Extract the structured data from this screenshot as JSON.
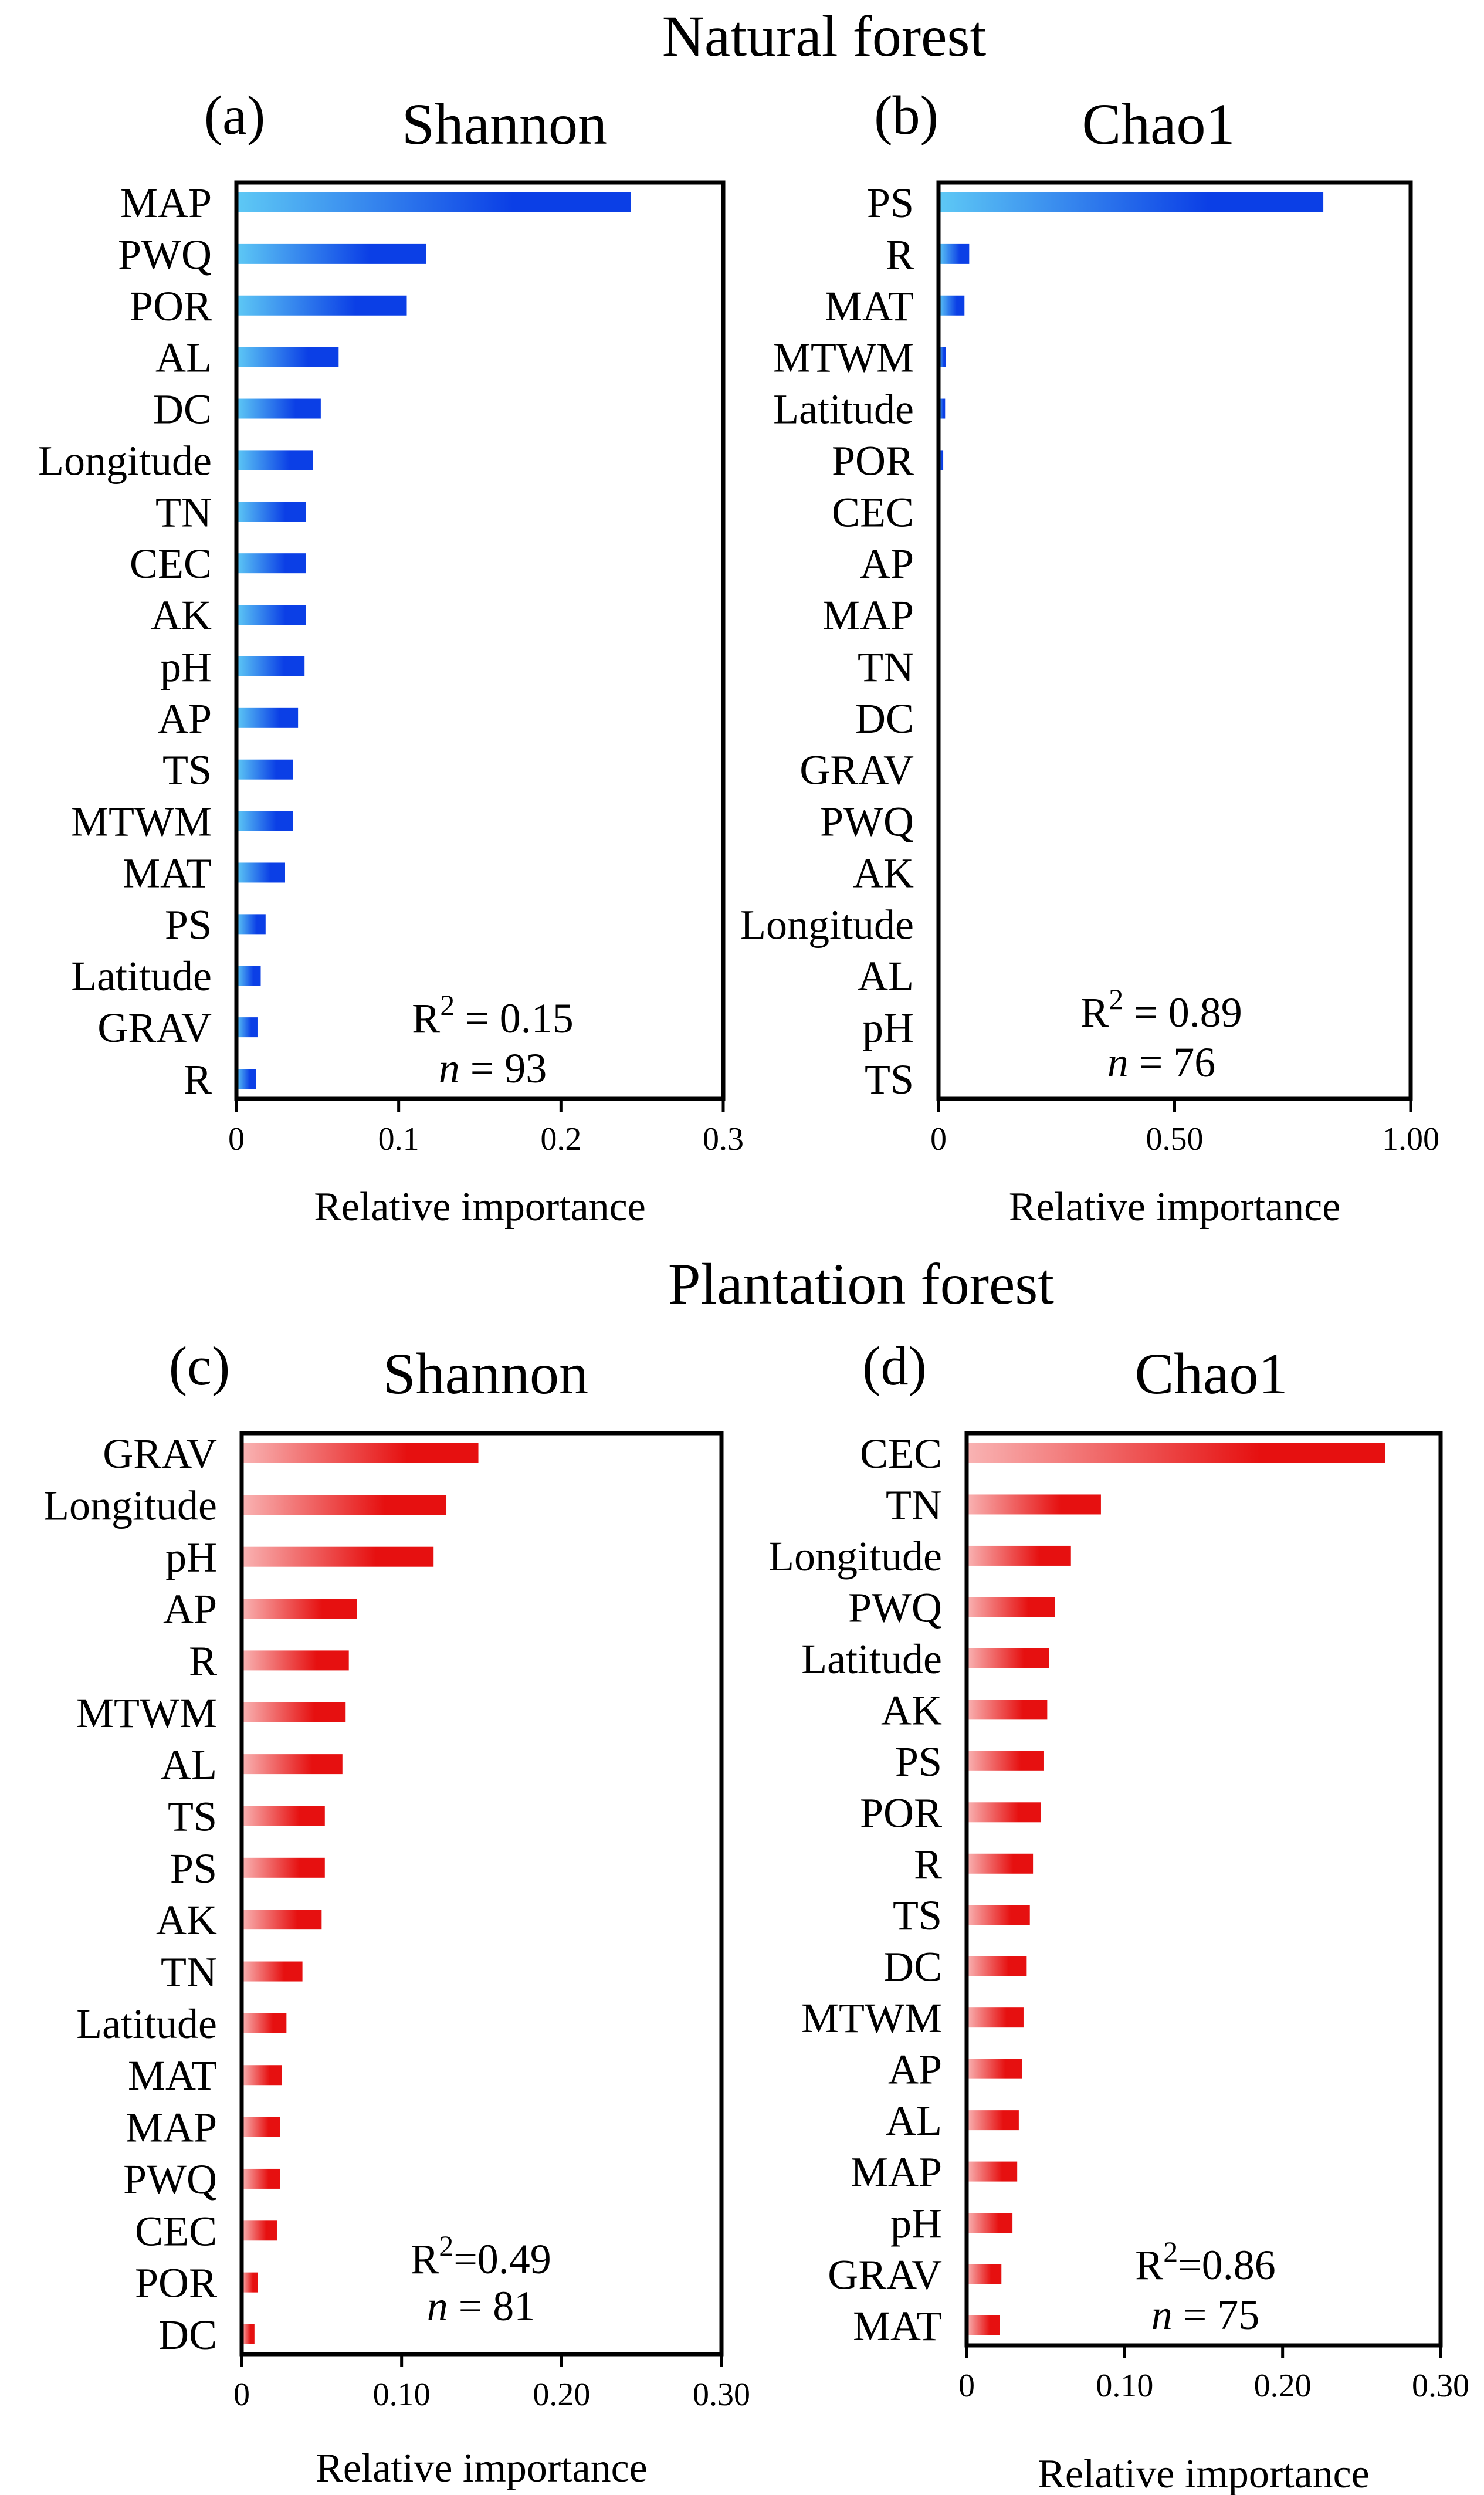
{
  "figure": {
    "section_titles": [
      "Natural forest",
      "Plantation forest"
    ]
  },
  "colors": {
    "natural_bar_dark": "#0b3fe6",
    "natural_bar_light": "#5ec9f5",
    "plantation_bar_dark": "#e61010",
    "plantation_bar_light": "#f9b4b4",
    "axis": "#000000"
  },
  "chart_data": [
    {
      "type": "bar",
      "orientation": "horizontal",
      "letter": "(a)",
      "title": "Shannon",
      "section": "Natural forest",
      "categories": [
        "MAP",
        "PWQ",
        "POR",
        "AL",
        "DC",
        "Longitude",
        "TN",
        "CEC",
        "AK",
        "pH",
        "AP",
        "TS",
        "MTWM",
        "MAT",
        "PS",
        "Latitude",
        "GRAV",
        "R"
      ],
      "values": [
        0.243,
        0.117,
        0.105,
        0.063,
        0.052,
        0.047,
        0.043,
        0.043,
        0.043,
        0.042,
        0.038,
        0.035,
        0.035,
        0.03,
        0.018,
        0.015,
        0.013,
        0.012
      ],
      "xlim": [
        0,
        0.3
      ],
      "ticks": [
        0,
        0.1,
        0.2,
        0.3
      ],
      "tick_labels": [
        "0",
        "0.1",
        "0.2",
        "0.3"
      ],
      "xlabel": "Relative importance",
      "r2_label": "R",
      "r2_sup": "2",
      "r2_rest": " = 0.15",
      "n_label": "n",
      "n_rest": " = 93"
    },
    {
      "type": "bar",
      "orientation": "horizontal",
      "letter": "(b)",
      "title": "Chao1",
      "section": "Natural forest",
      "categories": [
        "PS",
        "R",
        "MAT",
        "MTWM",
        "Latitude",
        "POR",
        "CEC",
        "AP",
        "MAP",
        "TN",
        "DC",
        "GRAV",
        "PWQ",
        "AK",
        "Longitude",
        "AL",
        "pH",
        "TS"
      ],
      "values": [
        0.815,
        0.065,
        0.055,
        0.016,
        0.014,
        0.01,
        0,
        0,
        0,
        0,
        0,
        0,
        0,
        0,
        0,
        0,
        0,
        0
      ],
      "xlim": [
        0,
        1.0
      ],
      "ticks": [
        0,
        0.5,
        1.0
      ],
      "tick_labels": [
        "0",
        "0.50",
        "1.00"
      ],
      "xlabel": "Relative importance",
      "r2_label": "R",
      "r2_sup": "2",
      "r2_rest": " = 0.89",
      "n_label": "n",
      "n_rest": " = 76"
    },
    {
      "type": "bar",
      "orientation": "horizontal",
      "letter": "(c)",
      "title": "Shannon",
      "section": "Plantation forest",
      "categories": [
        "GRAV",
        "Longitude",
        "pH",
        "AP",
        "R",
        "MTWM",
        "AL",
        "TS",
        "PS",
        "AK",
        "TN",
        "Latitude",
        "MAT",
        "MAP",
        "PWQ",
        "CEC",
        "POR",
        "DC"
      ],
      "values": [
        0.148,
        0.128,
        0.12,
        0.072,
        0.067,
        0.065,
        0.063,
        0.052,
        0.052,
        0.05,
        0.038,
        0.028,
        0.025,
        0.024,
        0.024,
        0.022,
        0.01,
        0.008
      ],
      "xlim": [
        0,
        0.3
      ],
      "ticks": [
        0,
        0.1,
        0.2,
        0.3
      ],
      "tick_labels": [
        "0",
        "0.10",
        "0.20",
        "0.30"
      ],
      "xlabel": "Relative importance",
      "r2_label": "R",
      "r2_sup": "2",
      "r2_rest": "=0.49",
      "n_label": "n",
      "n_rest": " = 81"
    },
    {
      "type": "bar",
      "orientation": "horizontal",
      "letter": "(d)",
      "title": "Chao1",
      "section": "Plantation forest",
      "categories": [
        "CEC",
        "TN",
        "Longitude",
        "PWQ",
        "Latitude",
        "AK",
        "PS",
        "POR",
        "R",
        "TS",
        "DC",
        "MTWM",
        "AP",
        "AL",
        "MAP",
        "pH",
        "GRAV",
        "MAT"
      ],
      "values": [
        0.265,
        0.085,
        0.066,
        0.056,
        0.052,
        0.051,
        0.049,
        0.047,
        0.042,
        0.04,
        0.038,
        0.036,
        0.035,
        0.033,
        0.032,
        0.029,
        0.022,
        0.021
      ],
      "xlim": [
        0,
        0.3
      ],
      "ticks": [
        0,
        0.1,
        0.2,
        0.3
      ],
      "tick_labels": [
        "0",
        "0.10",
        "0.20",
        "0.30"
      ],
      "xlabel": "Relative importance",
      "r2_label": "R",
      "r2_sup": "2",
      "r2_rest": "=0.86",
      "n_label": "n",
      "n_rest": " = 75"
    }
  ]
}
